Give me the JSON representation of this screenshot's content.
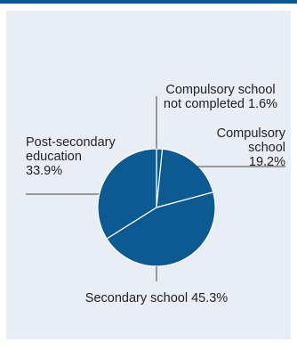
{
  "chart_data": {
    "type": "pie",
    "title": "",
    "slices": [
      {
        "label_lines": [
          "Compulsory school",
          "not completed 1.6%"
        ],
        "category": "Compulsory school not completed",
        "value": 1.6
      },
      {
        "label_lines": [
          "Compulsory",
          "school",
          "19.2%"
        ],
        "category": "Compulsory school",
        "value": 19.2
      },
      {
        "label_lines": [
          "Secondary school 45.3%"
        ],
        "category": "Secondary school",
        "value": 45.3
      },
      {
        "label_lines": [
          "Post-secondary",
          "education",
          "33.9%"
        ],
        "category": "Post-secondary education",
        "value": 33.9
      }
    ],
    "colors": {
      "slice_fill": "#0c5a91",
      "slice_stroke": "#ffffff",
      "leader": "#444444",
      "panel_bg": "#e9eef6",
      "top_bar": "#0a5a93"
    }
  }
}
